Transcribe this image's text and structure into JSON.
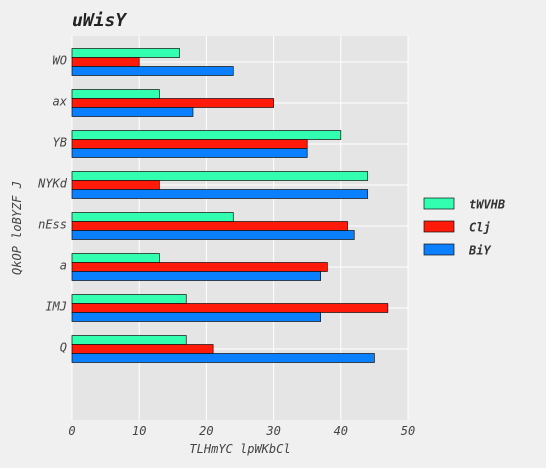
{
  "chart_data": {
    "type": "bar",
    "orientation": "horizontal",
    "title": "uWisY",
    "xlabel": "TLHmYC lpWKbCl",
    "ylabel": "QkOP loBYZF J",
    "categories": [
      "WO",
      "ax",
      "YB",
      "NYKd",
      "nEss",
      "a",
      "IMJ",
      "Q"
    ],
    "series": [
      {
        "name": "tWVHB",
        "color": "#33ffb0",
        "values": [
          16,
          13,
          40,
          44,
          24,
          13,
          17,
          17
        ]
      },
      {
        "name": "Clj",
        "color": "#ff1a0a",
        "values": [
          10,
          30,
          35,
          13,
          41,
          38,
          47,
          21
        ]
      },
      {
        "name": "BiY",
        "color": "#0a80ff",
        "values": [
          24,
          18,
          35,
          44,
          42,
          37,
          37,
          45
        ]
      }
    ],
    "xlim": [
      0,
      50
    ],
    "xticks": [
      0,
      10,
      20,
      30,
      40,
      50
    ],
    "grid": true,
    "legend_position": "right"
  }
}
